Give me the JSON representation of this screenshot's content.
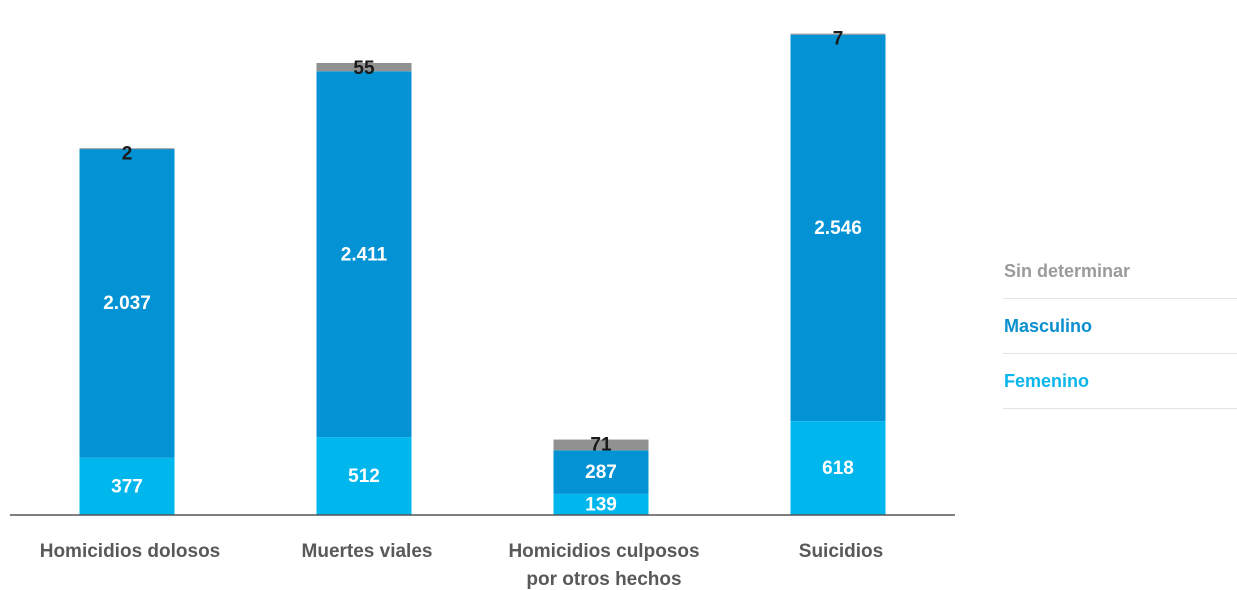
{
  "colors": {
    "sin_determinar": "#919191",
    "masculino": "#0393d4",
    "femenino": "#00b7ed",
    "legend_sin_determinar_text": "#9b9b9b",
    "legend_masculino_text": "#0a8fcf",
    "legend_femenino_text": "#09b6ec",
    "axis": "#555555",
    "label_dark": "#1a1a1a",
    "label_light": "#ffffff"
  },
  "legend": [
    {
      "key": "sin_determinar",
      "label": "Sin determinar"
    },
    {
      "key": "masculino",
      "label": "Masculino"
    },
    {
      "key": "femenino",
      "label": "Femenino"
    }
  ],
  "chart_data": {
    "type": "bar",
    "stacked": true,
    "categories": [
      [
        "Homicidios dolosos"
      ],
      [
        "Muertes viales"
      ],
      [
        "Homicidios culposos",
        "por otros hechos"
      ],
      [
        "Suicidios"
      ]
    ],
    "series": [
      {
        "name": "Femenino",
        "key": "femenino",
        "values": [
          377,
          512,
          139,
          618
        ],
        "labels": [
          "377",
          "512",
          "139",
          "618"
        ]
      },
      {
        "name": "Masculino",
        "key": "masculino",
        "values": [
          2037,
          2411,
          287,
          2546
        ],
        "labels": [
          "2.037",
          "2.411",
          "287",
          "2.546"
        ]
      },
      {
        "name": "Sin determinar",
        "key": "sin_determinar",
        "values": [
          2,
          55,
          71,
          7
        ],
        "labels": [
          "2",
          "55",
          "71",
          "7"
        ]
      }
    ],
    "ylim": [
      0,
      3200
    ],
    "grid": false,
    "legend_position": "right"
  }
}
